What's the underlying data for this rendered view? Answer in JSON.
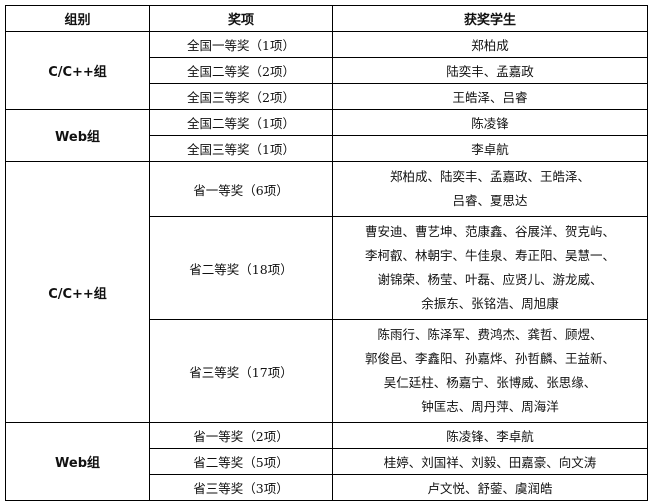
{
  "headers": [
    "组别",
    "奖项",
    "获奖学生"
  ],
  "rows": [
    {
      "group": "C/C++组",
      "award": "全国一等奖（1项）",
      "winners": [
        "郑柏成"
      ]
    },
    {
      "award": "全国二等奖（2项）",
      "winners": [
        "陆奕丰、孟嘉政"
      ]
    },
    {
      "award": "全国三等奖（2项）",
      "winners": [
        "王皓泽、吕睿"
      ]
    },
    {
      "group": "Web组",
      "award": "全国二等奖（1项）",
      "winners": [
        "陈凌锋"
      ]
    },
    {
      "award": "全国三等奖（1项）",
      "winners": [
        "李卓航"
      ]
    },
    {
      "group": "C/C++组",
      "award": "省一等奖（6项）",
      "winners": [
        "郑柏成、陆奕丰、孟嘉政、王皓泽、",
        "吕睿、夏思达"
      ]
    },
    {
      "award": "省二等奖（18项）",
      "winners": [
        "曹安迪、曹艺坤、范康鑫、谷展洋、贺克屿、",
        "李柯叡、林朝宇、牛佳泉、寿正阳、吴慧一、",
        "谢锦荣、杨莹、叶磊、应贤儿、游龙威、",
        "余振东、张铭浩、周旭康"
      ]
    },
    {
      "award": "省三等奖（17项）",
      "winners": [
        "陈雨行、陈泽军、费鸿杰、龚哲、顾煜、",
        "郭俊邑、李鑫阳、孙嘉烨、孙哲麟、王益新、",
        "吴仁廷柱、杨嘉宁、张博威、张思缘、",
        "钟匡志、周丹萍、周海洋"
      ]
    },
    {
      "group": "Web组",
      "award": "省一等奖（2项）",
      "winners": [
        "陈凌锋、李卓航"
      ]
    },
    {
      "award": "省二等奖（5项）",
      "winners": [
        "桂婷、刘国祥、刘毅、田嘉豪、向文涛"
      ]
    },
    {
      "award": "省三等奖（3项）",
      "winners": [
        "卢文悦、舒蓥、虞润皓"
      ]
    }
  ]
}
